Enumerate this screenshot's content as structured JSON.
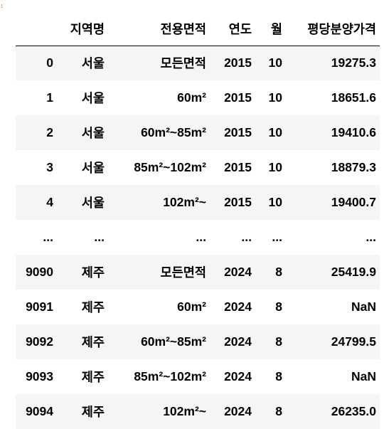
{
  "table": {
    "columns": [
      "",
      "지역명",
      "전용면적",
      "연도",
      "월",
      "평당분양가격"
    ],
    "rows": [
      [
        "0",
        "서울",
        "모든면적",
        "2015",
        "10",
        "19275.3"
      ],
      [
        "1",
        "서울",
        "60m²",
        "2015",
        "10",
        "18651.6"
      ],
      [
        "2",
        "서울",
        "60m²~85m²",
        "2015",
        "10",
        "19410.6"
      ],
      [
        "3",
        "서울",
        "85m²~102m²",
        "2015",
        "10",
        "18879.3"
      ],
      [
        "4",
        "서울",
        "102m²~",
        "2015",
        "10",
        "19400.7"
      ],
      [
        "...",
        "...",
        "...",
        "...",
        "...",
        "..."
      ],
      [
        "9090",
        "제주",
        "모든면적",
        "2024",
        "8",
        "25419.9"
      ],
      [
        "9091",
        "제주",
        "60m²",
        "2024",
        "8",
        "NaN"
      ],
      [
        "9092",
        "제주",
        "60m²~85m²",
        "2024",
        "8",
        "24799.5"
      ],
      [
        "9093",
        "제주",
        "85m²~102m²",
        "2024",
        "8",
        "NaN"
      ],
      [
        "9094",
        "제주",
        "102m²~",
        "2024",
        "8",
        "26235.0"
      ]
    ]
  },
  "colors": {
    "odd_row": "#f5f5f5",
    "even_row": "#ffffff",
    "header_rule": "#000000"
  }
}
